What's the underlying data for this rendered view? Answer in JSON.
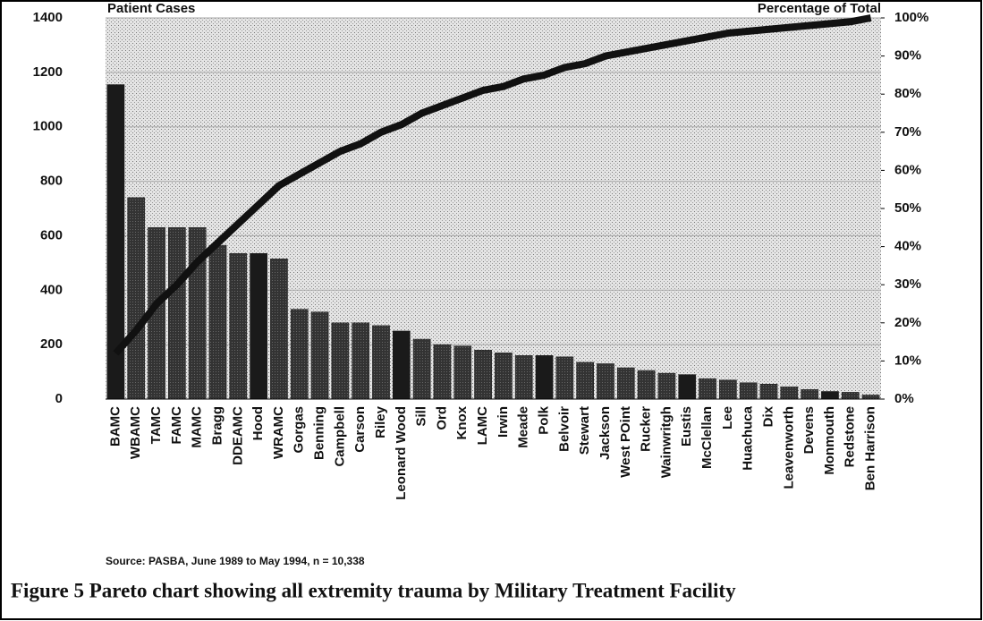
{
  "chart_data": {
    "type": "pareto",
    "ylabel": "Patient Cases",
    "y2label": "Percentage of Total",
    "source": "Source:  PASBA, June 1989 to May 1994, n = 10,338",
    "caption": "Figure 5  Pareto chart showing all extremity trauma by Military Treatment Facility",
    "categories": [
      "BAMC",
      "WBAMC",
      "TAMC",
      "FAMC",
      "MAMC",
      "Bragg",
      "DDEAMC",
      "Hood",
      "WRAMC",
      "Gorgas",
      "Benning",
      "Campbell",
      "Carson",
      "Riley",
      "Leonard Wood",
      "Sill",
      "Ord",
      "Knox",
      "LAMC",
      "Irwin",
      "Meade",
      "Polk",
      "Belvoir",
      "Stewart",
      "Jackson",
      "West POint",
      "Rucker",
      "Wainwritgh",
      "Eustis",
      "McClellan",
      "Lee",
      "Huachuca",
      "Dix",
      "Leavenworth",
      "Devens",
      "Monmouth",
      "Redstone",
      "Ben Harrison"
    ],
    "series": [
      {
        "kind": "bar",
        "color": "#1a1a1a",
        "values": [
          1155,
          740,
          630,
          630,
          630,
          565,
          535,
          535,
          515,
          330,
          320,
          280,
          280,
          270,
          250,
          220,
          200,
          195,
          180,
          170,
          160,
          160,
          155,
          135,
          130,
          115,
          105,
          95,
          90,
          75,
          70,
          60,
          55,
          45,
          35,
          28,
          25,
          15
        ]
      },
      {
        "kind": "line",
        "axis": "y2",
        "color": "#111111",
        "values": [
          12,
          18,
          25,
          30,
          36,
          41,
          46,
          51,
          56,
          59,
          62,
          65,
          67,
          70,
          72,
          75,
          77,
          79,
          81,
          82,
          84,
          85,
          87,
          88,
          90,
          91,
          92,
          93,
          94,
          95,
          96,
          96.5,
          97,
          97.5,
          98,
          98.5,
          99,
          100
        ]
      }
    ],
    "ylim": [
      0,
      1400
    ],
    "yticks": [
      0,
      200,
      400,
      600,
      800,
      1000,
      1200,
      1400
    ],
    "y2lim": [
      0,
      100
    ],
    "y2ticks": [
      {
        "value": 0,
        "label": "0%"
      },
      {
        "value": 10,
        "label": "10%"
      },
      {
        "value": 20,
        "label": "20%"
      },
      {
        "value": 30,
        "label": "30%"
      },
      {
        "value": 40,
        "label": "40%"
      },
      {
        "value": 50,
        "label": "50%"
      },
      {
        "value": 60,
        "label": "60%"
      },
      {
        "value": 70,
        "label": "70%"
      },
      {
        "value": 80,
        "label": "80%"
      },
      {
        "value": 90,
        "label": "90%"
      },
      {
        "value": 100,
        "label": "100%"
      }
    ],
    "grid": true
  }
}
